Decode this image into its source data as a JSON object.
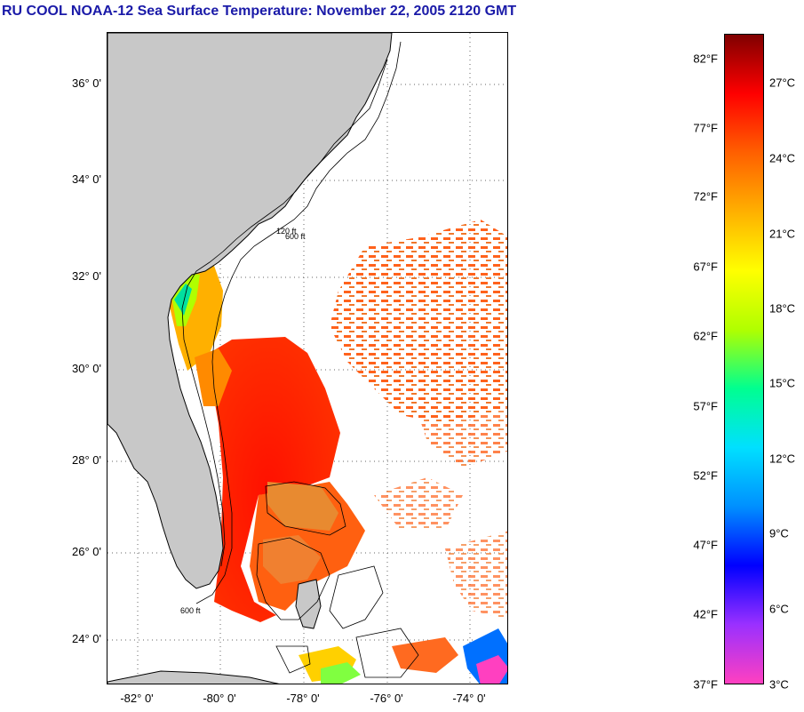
{
  "title": "RU COOL  NOAA-12  Sea Surface Temperature:  November 22, 2005 2120 GMT",
  "map": {
    "lat_ticks": [
      "36° 0'",
      "34° 0'",
      "32° 0'",
      "30° 0'",
      "28° 0'",
      "26° 0'",
      "24° 0'"
    ],
    "lon_ticks": [
      "-82° 0'",
      "-80° 0'",
      "-78° 0'",
      "-76° 0'",
      "-74° 0'"
    ],
    "land_color": "#c8c8c8",
    "isobath_labels": [
      "600 ft",
      "120 ft"
    ]
  },
  "colorbar": {
    "fahrenheit_labels": [
      "82°F",
      "77°F",
      "72°F",
      "67°F",
      "62°F",
      "57°F",
      "52°F",
      "47°F",
      "42°F",
      "37°F"
    ],
    "celsius_labels": [
      "27°C",
      "24°C",
      "21°C",
      "18°C",
      "15°C",
      "12°C",
      "9°C",
      "6°C",
      "3°C"
    ],
    "colors": [
      "#ff40c0",
      "#9a30ff",
      "#0000ff",
      "#0090ff",
      "#00e0ff",
      "#00ff90",
      "#b0ff00",
      "#ffff00",
      "#ffb000",
      "#ff6000",
      "#ff0000",
      "#800000"
    ]
  }
}
